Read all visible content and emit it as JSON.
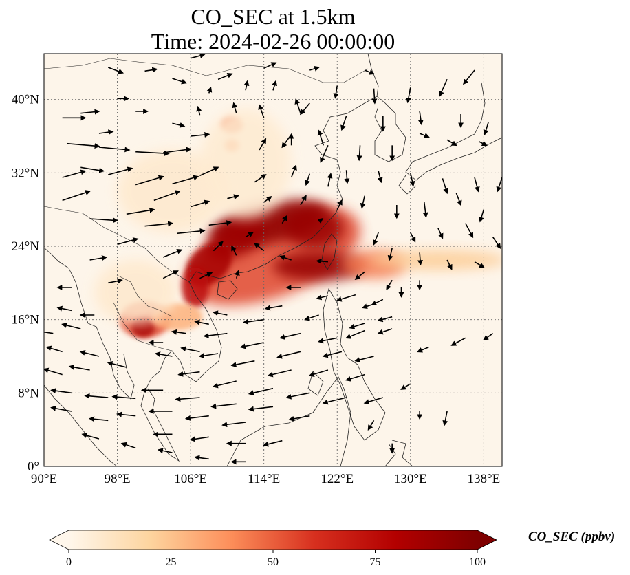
{
  "title": {
    "line1": "CO_SEC at 1.5km",
    "line2": "Time: 2024-02-26 00:00:00"
  },
  "map": {
    "projection": "PlateCarree",
    "lon_range": [
      90,
      140
    ],
    "lat_range": [
      0,
      45
    ],
    "gridlines": "dotted",
    "coastlines": true,
    "background": "#fdf5ea",
    "lon_ticks": [
      {
        "value": 90,
        "label": "90°E"
      },
      {
        "value": 98,
        "label": "98°E"
      },
      {
        "value": 106,
        "label": "106°E"
      },
      {
        "value": 114,
        "label": "114°E"
      },
      {
        "value": 122,
        "label": "122°E"
      },
      {
        "value": 130,
        "label": "130°E"
      },
      {
        "value": 138,
        "label": "138°E"
      }
    ],
    "lat_ticks": [
      {
        "value": 0,
        "label": "0°"
      },
      {
        "value": 8,
        "label": "8°N"
      },
      {
        "value": 16,
        "label": "16°N"
      },
      {
        "value": 24,
        "label": "24°N"
      },
      {
        "value": 32,
        "label": "32°N"
      },
      {
        "value": 40,
        "label": "40°N"
      }
    ]
  },
  "colorbar": {
    "label": "CO_SEC (ppbv)",
    "colormap": "OrRd",
    "extend": "both",
    "range": [
      0,
      100
    ],
    "ticks": [
      {
        "value": 0,
        "label": "0"
      },
      {
        "value": 25,
        "label": "25"
      },
      {
        "value": 50,
        "label": "50"
      },
      {
        "value": 75,
        "label": "75"
      },
      {
        "value": 100,
        "label": "100"
      }
    ],
    "stops": [
      {
        "value": 0,
        "color": "#fff7ec"
      },
      {
        "value": 20,
        "color": "#fdd49e"
      },
      {
        "value": 40,
        "color": "#fc8d59"
      },
      {
        "value": 60,
        "color": "#d7301f"
      },
      {
        "value": 80,
        "color": "#b30000"
      },
      {
        "value": 100,
        "color": "#7f0000"
      }
    ]
  },
  "plumes": [
    {
      "lon": 115.0,
      "lat": 23.0,
      "rx": 10.0,
      "ry": 4.5,
      "rot": -20,
      "value": 55
    },
    {
      "lon": 114.5,
      "lat": 26.5,
      "rx": 6.5,
      "ry": 2.2,
      "rot": -12,
      "value": 95
    },
    {
      "lon": 119.5,
      "lat": 26.0,
      "rx": 3.2,
      "ry": 2.2,
      "rot": 0,
      "value": 90
    },
    {
      "lon": 111.0,
      "lat": 25.0,
      "rx": 3.5,
      "ry": 2.0,
      "rot": -30,
      "value": 88
    },
    {
      "lon": 108.0,
      "lat": 22.0,
      "rx": 2.8,
      "ry": 2.0,
      "rot": -40,
      "value": 85
    },
    {
      "lon": 106.5,
      "lat": 19.5,
      "rx": 1.5,
      "ry": 2.2,
      "rot": 0,
      "value": 75
    },
    {
      "lon": 120.0,
      "lat": 21.8,
      "rx": 5.0,
      "ry": 1.6,
      "rot": 0,
      "value": 92
    },
    {
      "lon": 126.0,
      "lat": 22.0,
      "rx": 3.5,
      "ry": 1.5,
      "rot": 0,
      "value": 45
    },
    {
      "lon": 133.0,
      "lat": 22.5,
      "rx": 7.5,
      "ry": 1.1,
      "rot": 0,
      "value": 22
    },
    {
      "lon": 101.0,
      "lat": 16.0,
      "rx": 2.8,
      "ry": 2.0,
      "rot": 0,
      "value": 55
    },
    {
      "lon": 100.8,
      "lat": 15.2,
      "rx": 1.3,
      "ry": 1.1,
      "rot": 0,
      "value": 85
    },
    {
      "lon": 104.5,
      "lat": 16.3,
      "rx": 2.8,
      "ry": 1.5,
      "rot": 0,
      "value": 30
    },
    {
      "lon": 110.5,
      "lat": 37.2,
      "rx": 1.2,
      "ry": 0.9,
      "rot": 0,
      "value": 45
    },
    {
      "lon": 110.5,
      "lat": 35.0,
      "rx": 0.8,
      "ry": 0.7,
      "rot": 0,
      "value": 40
    },
    {
      "lon": 104.0,
      "lat": 30.0,
      "rx": 6.0,
      "ry": 4.5,
      "rot": 0,
      "value": 8
    },
    {
      "lon": 112.0,
      "lat": 33.0,
      "rx": 5.0,
      "ry": 6.0,
      "rot": 0,
      "value": 7
    },
    {
      "lon": 100.0,
      "lat": 19.0,
      "rx": 4.5,
      "ry": 3.5,
      "rot": 0,
      "value": 8
    }
  ],
  "wind_vectors": [
    [
      92,
      38,
      2.5,
      0
    ],
    [
      94,
      38.5,
      2,
      0.2
    ],
    [
      92.5,
      35.2,
      3.5,
      -0.3
    ],
    [
      96,
      34.8,
      3.3,
      -0.3
    ],
    [
      100,
      34.3,
      3.6,
      -0.2
    ],
    [
      103,
      34.2,
      3,
      0.4
    ],
    [
      92,
      31.5,
      2.5,
      0.7
    ],
    [
      94,
      32.6,
      2.5,
      -0.4
    ],
    [
      97,
      31.8,
      2.6,
      0.7
    ],
    [
      100,
      30.7,
      3,
      0.9
    ],
    [
      104,
      30.8,
      2.8,
      0.8
    ],
    [
      107,
      31.7,
      2,
      0.9
    ],
    [
      92,
      29,
      3,
      1
    ],
    [
      95,
      27,
      3,
      -0.2
    ],
    [
      99,
      27.5,
      3,
      0.5
    ],
    [
      102,
      29,
      2.8,
      1
    ],
    [
      106,
      28.3,
      2,
      0.6
    ],
    [
      101,
      26.2,
      3,
      0.3
    ],
    [
      104.5,
      25.4,
      3,
      0.3
    ],
    [
      108,
      26.3,
      2.4,
      0.3
    ],
    [
      98,
      24.2,
      2.2,
      0.6
    ],
    [
      95,
      22.5,
      1.8,
      0.3
    ],
    [
      103,
      22.8,
      2,
      0.8
    ],
    [
      98,
      40.1,
      1.2,
      0
    ],
    [
      100,
      38.7,
      1.3,
      0
    ],
    [
      104,
      37.4,
      1.3,
      -0.3
    ],
    [
      96,
      36.3,
      1.5,
      0.2
    ],
    [
      106,
      36,
      2,
      0.2
    ],
    [
      104,
      42.3,
      1.5,
      -0.5
    ],
    [
      109,
      42.2,
      1.5,
      0.6
    ],
    [
      97,
      43.5,
      1.6,
      -0.6
    ],
    [
      101,
      43.1,
      1.3,
      0.2
    ],
    [
      106,
      44.5,
      1.5,
      0.4
    ],
    [
      114,
      43.4,
      1.3,
      0.6
    ],
    [
      119,
      43.2,
      1,
      0.3
    ],
    [
      125,
      43.2,
      1,
      -0.4
    ],
    [
      122,
      41.5,
      -0.2,
      -1.3
    ],
    [
      126,
      41.2,
      0.1,
      -1.6
    ],
    [
      130,
      41.3,
      -0.3,
      -1.6
    ],
    [
      134,
      42.2,
      -0.8,
      -1.8
    ],
    [
      137,
      43.2,
      -1.2,
      -1.5
    ],
    [
      119,
      39.6,
      -1,
      -1.2
    ],
    [
      123,
      38.2,
      -0.5,
      -1.5
    ],
    [
      127,
      38.2,
      0,
      -1.6
    ],
    [
      131,
      38.7,
      0.2,
      -1.4
    ],
    [
      135.5,
      38.4,
      0,
      -1.4
    ],
    [
      138.5,
      37.5,
      -0.4,
      -1.3
    ],
    [
      117,
      36.2,
      -1,
      -1.4
    ],
    [
      121,
      35,
      -0.8,
      -1.8
    ],
    [
      124.5,
      35,
      -0.1,
      -1.6
    ],
    [
      128,
      35,
      0,
      -1.6
    ],
    [
      131,
      36.3,
      1,
      -0.4
    ],
    [
      134,
      35.6,
      1,
      -0.6
    ],
    [
      137.5,
      35.4,
      0.8,
      -0.4
    ],
    [
      119,
      31.9,
      -0.4,
      -1.2
    ],
    [
      123,
      32.3,
      0.1,
      -1.4
    ],
    [
      126.5,
      32.2,
      0.3,
      -1.2
    ],
    [
      130,
      32,
      0.3,
      -1.4
    ],
    [
      133.5,
      31.4,
      0.5,
      -1.6
    ],
    [
      137,
      31.5,
      0.4,
      -1.5
    ],
    [
      140,
      31.5,
      -0.5,
      -1.5
    ],
    [
      125,
      29.5,
      -0.3,
      -1.3
    ],
    [
      128.5,
      28.5,
      0,
      -1.4
    ],
    [
      131.5,
      28.8,
      0.2,
      -1.6
    ],
    [
      135,
      29.8,
      0.5,
      -1.3
    ],
    [
      138,
      28,
      -0.4,
      -1.3
    ],
    [
      126.5,
      25.5,
      -0.5,
      -1.3
    ],
    [
      130,
      25.5,
      0.5,
      -1
    ],
    [
      133,
      26,
      0.5,
      -1.1
    ],
    [
      136,
      26.5,
      0.8,
      -1.5
    ],
    [
      139,
      25,
      0.8,
      -1.2
    ],
    [
      128,
      23.8,
      -0.3,
      -1.3
    ],
    [
      131,
      23.3,
      0.1,
      -1.3
    ],
    [
      134,
      22.5,
      0.5,
      -1
    ],
    [
      137,
      22.3,
      1,
      -0.6
    ],
    [
      125,
      21.2,
      -1,
      -0.8
    ],
    [
      128,
      20.3,
      -0.6,
      -1
    ],
    [
      131,
      20.3,
      0,
      -1
    ],
    [
      124,
      18.7,
      -2,
      -0.6
    ],
    [
      127,
      18.2,
      -1.2,
      -0.6
    ],
    [
      129,
      19.5,
      0,
      -1
    ],
    [
      118,
      19.5,
      -1.5,
      0
    ],
    [
      121,
      18.6,
      -1.2,
      -0.3
    ],
    [
      126,
      17.7,
      -1.2,
      -0.4
    ],
    [
      128,
      16.3,
      -1.5,
      -0.4
    ],
    [
      116,
      17.5,
      -1.8,
      -0.3
    ],
    [
      120,
      16.5,
      -1.5,
      -0.5
    ],
    [
      125,
      15.6,
      -1.6,
      -0.5
    ],
    [
      114,
      16,
      -2.2,
      -0.3
    ],
    [
      118,
      14.5,
      -2.2,
      -0.5
    ],
    [
      122,
      14,
      -2,
      -0.4
    ],
    [
      125,
      14.8,
      -2,
      -0.8
    ],
    [
      128,
      15,
      -1.5,
      -0.5
    ],
    [
      110,
      14.5,
      -2.5,
      -0.3
    ],
    [
      114,
      13.5,
      -2.5,
      -0.5
    ],
    [
      118,
      12.5,
      -2.5,
      -0.6
    ],
    [
      122.5,
      12.5,
      -2,
      -0.5
    ],
    [
      126,
      12,
      -2,
      -0.5
    ],
    [
      109,
      12.3,
      -2,
      -0.3
    ],
    [
      113,
      11.5,
      -2.5,
      -0.5
    ],
    [
      117,
      10.5,
      -2.5,
      -0.6
    ],
    [
      121,
      10.5,
      -2,
      -0.6
    ],
    [
      125,
      10,
      -2,
      -0.6
    ],
    [
      107,
      10.3,
      -2.3,
      -0.3
    ],
    [
      111,
      9.3,
      -2.5,
      -0.6
    ],
    [
      115,
      8.5,
      -2.6,
      -0.6
    ],
    [
      119,
      8,
      -2.5,
      -0.5
    ],
    [
      123,
      7.5,
      -2.5,
      -0.6
    ],
    [
      127,
      7.5,
      -2,
      -0.6
    ],
    [
      103,
      8.3,
      -2.3,
      0
    ],
    [
      107,
      7.5,
      -2.6,
      -0.2
    ],
    [
      111,
      6.8,
      -2.7,
      -0.3
    ],
    [
      115,
      6.5,
      -2.6,
      -0.3
    ],
    [
      119,
      5.5,
      -2.2,
      -0.4
    ],
    [
      93,
      8,
      -2.2,
      0.3
    ],
    [
      97,
      7.5,
      -2.5,
      0.2
    ],
    [
      100,
      7.4,
      -2.5,
      0.2
    ],
    [
      104,
      6,
      -2.5,
      0
    ],
    [
      108,
      5.5,
      -2.5,
      -0.3
    ],
    [
      112,
      4.8,
      -2.5,
      -0.3
    ],
    [
      93,
      6,
      -2.2,
      0.4
    ],
    [
      97,
      5,
      -2,
      0.2
    ],
    [
      100,
      5.5,
      -2,
      0.2
    ],
    [
      104,
      3.5,
      -2,
      0
    ],
    [
      108,
      3.2,
      -2,
      -0.3
    ],
    [
      112,
      2.5,
      -2,
      0
    ],
    [
      116,
      2.8,
      -2,
      -0.5
    ],
    [
      96,
      3,
      -1.8,
      0.5
    ],
    [
      100,
      2,
      -1.5,
      0.5
    ],
    [
      104,
      1.5,
      -1.5,
      0.3
    ],
    [
      108,
      0.8,
      -1.5,
      0.2
    ],
    [
      112,
      0.5,
      -1.5,
      0
    ],
    [
      92,
      12.5,
      -1.7,
      0.5
    ],
    [
      96,
      12,
      -2,
      0.5
    ],
    [
      99,
      10.8,
      -2,
      0.5
    ],
    [
      92,
      10,
      -2,
      0.6
    ],
    [
      95,
      10.5,
      -2.2,
      0.4
    ],
    [
      91,
      14.5,
      -2,
      0.3
    ],
    [
      94,
      15,
      -2,
      0.5
    ],
    [
      95.5,
      16.5,
      -1.5,
      0
    ],
    [
      93,
      17,
      -1.5,
      0.3
    ],
    [
      93,
      19.5,
      -1.5,
      0
    ],
    [
      104,
      12,
      -1.8,
      0.3
    ],
    [
      107,
      12.5,
      -2,
      0.4
    ],
    [
      103,
      13.5,
      -1.5,
      0
    ],
    [
      105.5,
      14.5,
      -1.5,
      0.2
    ],
    [
      108,
      15.5,
      -1.5,
      0.3
    ],
    [
      110,
      16.5,
      -1.5,
      0.3
    ],
    [
      97,
      20,
      1.5,
      0.3
    ],
    [
      103,
      20.5,
      1.6,
      0.8
    ],
    [
      107,
      20.5,
      1.3,
      0.6
    ],
    [
      111,
      20.5,
      0.2,
      0.8
    ],
    [
      111,
      23,
      -0.5,
      1
    ],
    [
      114,
      23.5,
      -1,
      0.8
    ],
    [
      117,
      22.5,
      -1.2,
      0.4
    ],
    [
      121,
      22.3,
      -1.2,
      0.1
    ],
    [
      108.5,
      23.5,
      1,
      1
    ],
    [
      112,
      25,
      0.8,
      0.5
    ],
    [
      116,
      26.5,
      0.5,
      0.8
    ],
    [
      120,
      26.7,
      0.4,
      0.3
    ],
    [
      110,
      29.2,
      1.2,
      0.3
    ],
    [
      114,
      28.8,
      0.8,
      0.6
    ],
    [
      118,
      28.5,
      0.6,
      1
    ],
    [
      122,
      28,
      0.5,
      1
    ],
    [
      113,
      31,
      1.2,
      0.8
    ],
    [
      117,
      31.5,
      0.5,
      1.3
    ],
    [
      121,
      30.5,
      0.3,
      1.4
    ],
    [
      113.5,
      34.5,
      0.7,
      1.2
    ],
    [
      117,
      35,
      0,
      1.2
    ],
    [
      120.5,
      35,
      -0.5,
      1.6
    ],
    [
      114,
      38,
      -0.5,
      1.4
    ],
    [
      118,
      38.5,
      -0.5,
      1.5
    ],
    [
      111,
      38.5,
      -0.3,
      1.1
    ],
    [
      107,
      38.3,
      -0.2,
      0.9
    ],
    [
      108,
      40.7,
      0.2,
      0.6
    ],
    [
      112,
      41,
      0.2,
      1
    ],
    [
      115,
      41,
      0.3,
      1
    ],
    [
      130,
      9,
      -1,
      -0.6
    ],
    [
      132,
      13,
      -1.2,
      -0.5
    ],
    [
      136,
      14,
      -1.5,
      -0.8
    ],
    [
      139,
      14.5,
      -1,
      -0.7
    ],
    [
      134,
      6,
      -0.3,
      -1.5
    ],
    [
      126,
      5,
      -0.6,
      -1
    ],
    [
      128,
      2.5,
      0,
      -1
    ],
    [
      131,
      6,
      0,
      -0.8
    ]
  ]
}
